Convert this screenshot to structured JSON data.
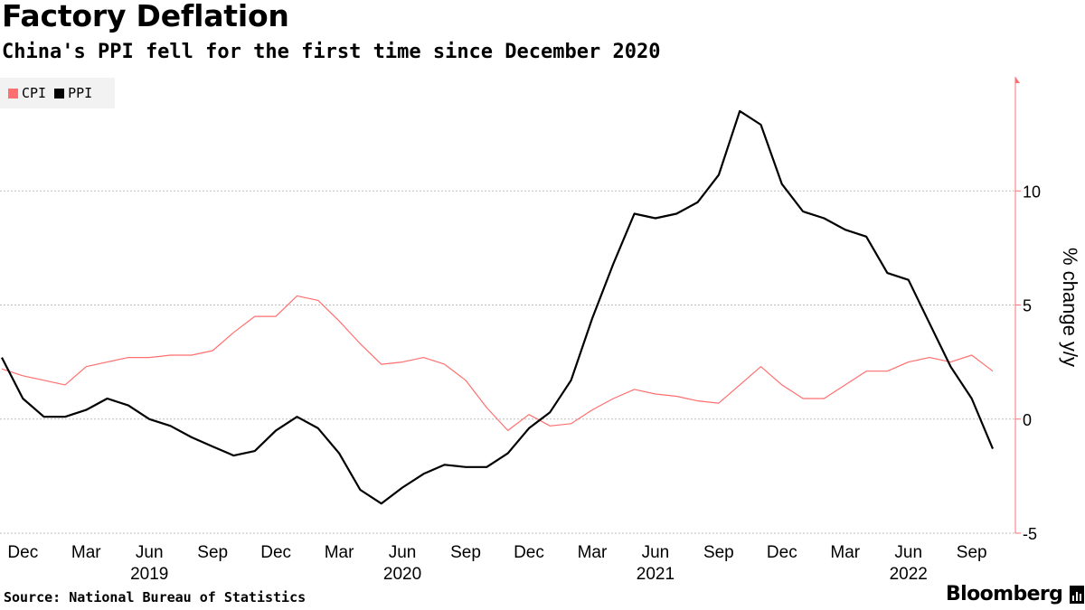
{
  "title": "Factory Deflation",
  "subtitle": "China's PPI fell for the first time since December 2020",
  "source": "Source: National Bureau of Statistics",
  "brand": "Bloomberg",
  "brand_icon": "bar-chart-icon",
  "colors": {
    "cpi": "#ff6f6f",
    "ppi": "#000000",
    "grid": "#bdbdbd",
    "axis": "#ff6f6f"
  },
  "chart_data": {
    "type": "line",
    "title": "Factory Deflation",
    "subtitle": "China's PPI fell for the first time since December 2020",
    "ylabel": "% change y/y",
    "ylim": [
      -5,
      15
    ],
    "yticks": [
      -5,
      0,
      5,
      10
    ],
    "ytick_labels": [
      "-5",
      "0",
      "5",
      "10"
    ],
    "grid": true,
    "legend_position": "top-left",
    "x": [
      "2018-11",
      "2018-12",
      "2019-01",
      "2019-02",
      "2019-03",
      "2019-04",
      "2019-05",
      "2019-06",
      "2019-07",
      "2019-08",
      "2019-09",
      "2019-10",
      "2019-11",
      "2019-12",
      "2020-01",
      "2020-02",
      "2020-03",
      "2020-04",
      "2020-05",
      "2020-06",
      "2020-07",
      "2020-08",
      "2020-09",
      "2020-10",
      "2020-11",
      "2020-12",
      "2021-01",
      "2021-02",
      "2021-03",
      "2021-04",
      "2021-05",
      "2021-06",
      "2021-07",
      "2021-08",
      "2021-09",
      "2021-10",
      "2021-11",
      "2021-12",
      "2022-01",
      "2022-02",
      "2022-03",
      "2022-04",
      "2022-05",
      "2022-06",
      "2022-07",
      "2022-08",
      "2022-09",
      "2022-10"
    ],
    "month_ticks": [
      {
        "label": "Dec",
        "index": 1
      },
      {
        "label": "Mar",
        "index": 4
      },
      {
        "label": "Jun",
        "index": 7
      },
      {
        "label": "Sep",
        "index": 10
      },
      {
        "label": "Dec",
        "index": 13
      },
      {
        "label": "Mar",
        "index": 16
      },
      {
        "label": "Jun",
        "index": 19
      },
      {
        "label": "Sep",
        "index": 22
      },
      {
        "label": "Dec",
        "index": 25
      },
      {
        "label": "Mar",
        "index": 28
      },
      {
        "label": "Jun",
        "index": 31
      },
      {
        "label": "Sep",
        "index": 34
      },
      {
        "label": "Dec",
        "index": 37
      },
      {
        "label": "Mar",
        "index": 40
      },
      {
        "label": "Jun",
        "index": 43
      },
      {
        "label": "Sep",
        "index": 46
      }
    ],
    "year_ticks": [
      {
        "label": "2019",
        "index": 7
      },
      {
        "label": "2020",
        "index": 19
      },
      {
        "label": "2021",
        "index": 31
      },
      {
        "label": "2022",
        "index": 43
      }
    ],
    "series": [
      {
        "name": "CPI",
        "values": [
          2.2,
          1.9,
          1.7,
          1.5,
          2.3,
          2.5,
          2.7,
          2.7,
          2.8,
          2.8,
          3.0,
          3.8,
          4.5,
          4.5,
          5.4,
          5.2,
          4.3,
          3.3,
          2.4,
          2.5,
          2.7,
          2.4,
          1.7,
          0.5,
          -0.5,
          0.2,
          -0.3,
          -0.2,
          0.4,
          0.9,
          1.3,
          1.1,
          1.0,
          0.8,
          0.7,
          1.5,
          2.3,
          1.5,
          0.9,
          0.9,
          1.5,
          2.1,
          2.1,
          2.5,
          2.7,
          2.5,
          2.8,
          2.1
        ]
      },
      {
        "name": "PPI",
        "values": [
          2.7,
          0.9,
          0.1,
          0.1,
          0.4,
          0.9,
          0.6,
          0.0,
          -0.3,
          -0.8,
          -1.2,
          -1.6,
          -1.4,
          -0.5,
          0.1,
          -0.4,
          -1.5,
          -3.1,
          -3.7,
          -3.0,
          -2.4,
          -2.0,
          -2.1,
          -2.1,
          -1.5,
          -0.4,
          0.3,
          1.7,
          4.4,
          6.8,
          9.0,
          8.8,
          9.0,
          9.5,
          10.7,
          13.5,
          12.9,
          10.3,
          9.1,
          8.8,
          8.3,
          8.0,
          6.4,
          6.1,
          4.2,
          2.3,
          0.9,
          -1.3
        ]
      }
    ]
  }
}
